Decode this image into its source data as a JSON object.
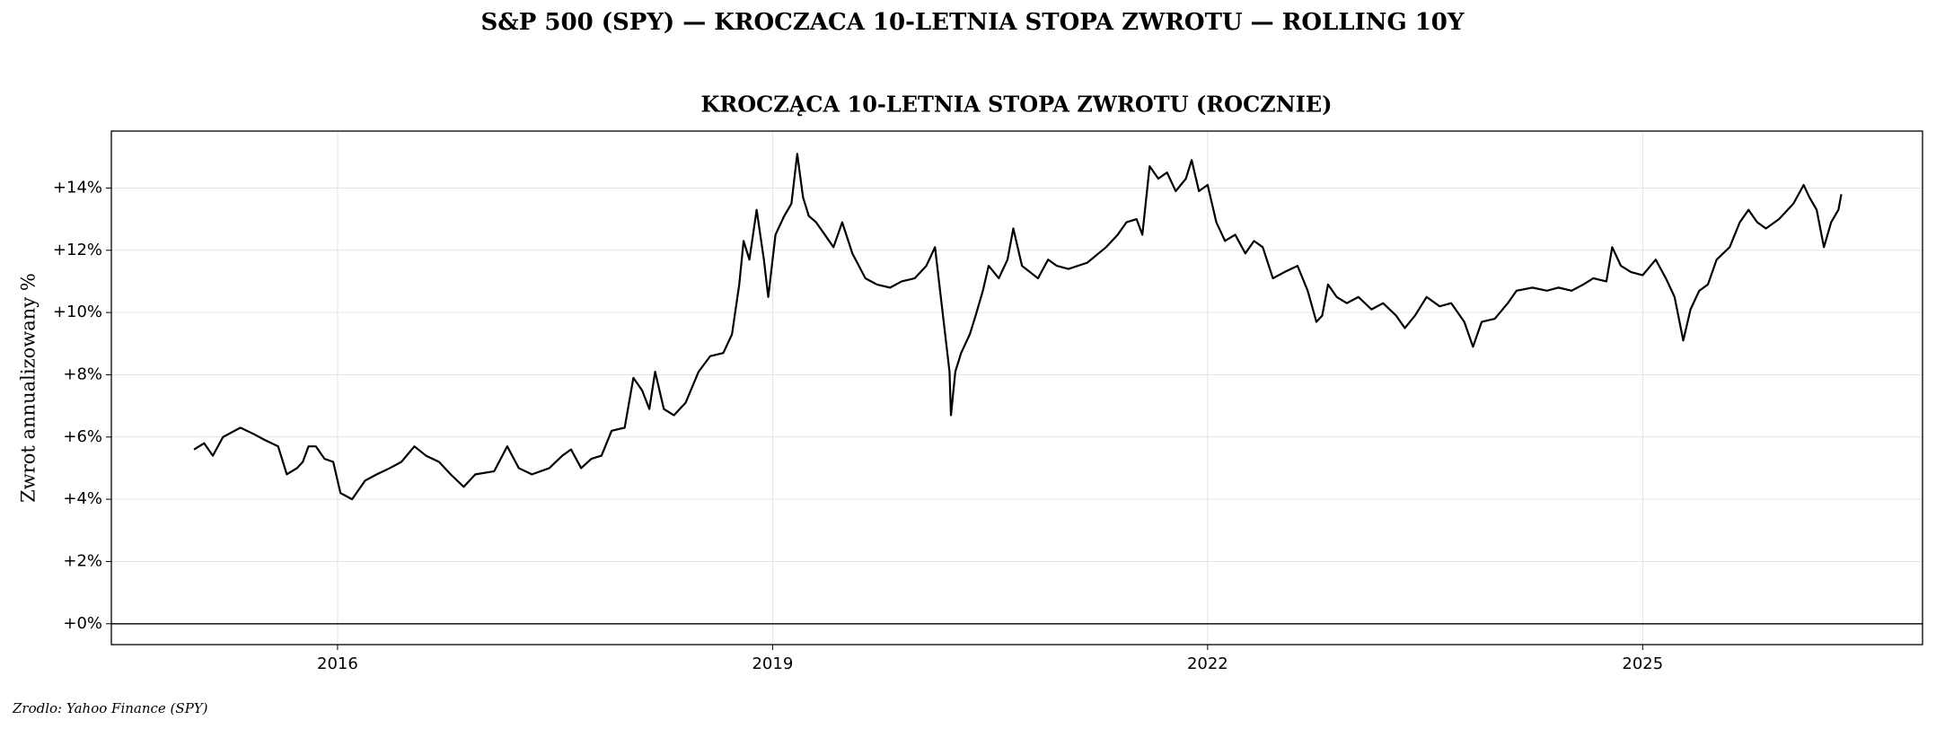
{
  "chart_data": {
    "type": "line",
    "suptitle": "S&P 500 (SPY) — KROCZACA 10-LETNIA STOPA ZWROTU — ROLLING 10Y",
    "title": "KROCZĄCA 10-LETNIA STOPA ZWROTU (ROCZNIE)",
    "ylabel": "Zwrot annualizowany %",
    "source": "Zrodlo: Yahoo Finance (SPY)",
    "color": "#000000",
    "grid": true,
    "hline": 0,
    "xlim": [
      2014.44,
      2026.93
    ],
    "xticks": [
      2016,
      2019,
      2022,
      2025
    ],
    "ylim": [
      -0.67,
      15.83
    ],
    "yticks": [
      {
        "value": 0,
        "label": "+0%"
      },
      {
        "value": 2,
        "label": "+2%"
      },
      {
        "value": 4,
        "label": "+4%"
      },
      {
        "value": 6,
        "label": "+6%"
      },
      {
        "value": 8,
        "label": "+8%"
      },
      {
        "value": 10,
        "label": "+10%"
      },
      {
        "value": 12,
        "label": "+12%"
      },
      {
        "value": 14,
        "label": "+14%"
      }
    ],
    "x": [
      2015.01,
      2015.08,
      2015.14,
      2015.21,
      2015.29,
      2015.33,
      2015.42,
      2015.5,
      2015.59,
      2015.65,
      2015.72,
      2015.76,
      2015.8,
      2015.85,
      2015.91,
      2015.97,
      2016.02,
      2016.1,
      2016.19,
      2016.27,
      2016.36,
      2016.44,
      2016.53,
      2016.61,
      2016.7,
      2016.78,
      2016.87,
      2016.95,
      2017.08,
      2017.17,
      2017.25,
      2017.34,
      2017.46,
      2017.55,
      2017.61,
      2017.68,
      2017.75,
      2017.82,
      2017.89,
      2017.98,
      2018.04,
      2018.1,
      2018.15,
      2018.19,
      2018.25,
      2018.32,
      2018.4,
      2018.49,
      2018.57,
      2018.66,
      2018.72,
      2018.77,
      2018.8,
      2018.84,
      2018.89,
      2018.94,
      2018.97,
      2019.02,
      2019.08,
      2019.13,
      2019.17,
      2019.21,
      2019.25,
      2019.3,
      2019.36,
      2019.42,
      2019.48,
      2019.55,
      2019.64,
      2019.72,
      2019.81,
      2019.89,
      2019.98,
      2020.06,
      2020.12,
      2020.16,
      2020.19,
      2020.22,
      2020.23,
      2020.26,
      2020.3,
      2020.36,
      2020.4,
      2020.45,
      2020.49,
      2020.56,
      2020.62,
      2020.66,
      2020.72,
      2020.83,
      2020.9,
      2020.96,
      2021.04,
      2021.17,
      2021.3,
      2021.38,
      2021.44,
      2021.51,
      2021.55,
      2021.6,
      2021.66,
      2021.72,
      2021.78,
      2021.85,
      2021.89,
      2021.94,
      2022.0,
      2022.06,
      2022.12,
      2022.19,
      2022.26,
      2022.32,
      2022.38,
      2022.45,
      2022.53,
      2022.62,
      2022.69,
      2022.75,
      2022.79,
      2022.83,
      2022.89,
      2022.96,
      2023.04,
      2023.13,
      2023.21,
      2023.3,
      2023.36,
      2023.43,
      2023.51,
      2023.6,
      2023.68,
      2023.77,
      2023.83,
      2023.89,
      2023.98,
      2024.07,
      2024.13,
      2024.24,
      2024.34,
      2024.42,
      2024.51,
      2024.59,
      2024.66,
      2024.75,
      2024.79,
      2024.85,
      2024.92,
      2025.0,
      2025.09,
      2025.16,
      2025.22,
      2025.28,
      2025.33,
      2025.39,
      2025.45,
      2025.51,
      2025.6,
      2025.67,
      2025.73,
      2025.79,
      2025.85,
      2025.94,
      2026.04,
      2026.11,
      2026.15,
      2026.2,
      2026.25,
      2026.3,
      2026.35,
      2026.37
    ],
    "values": [
      5.6,
      5.8,
      5.4,
      6.0,
      6.2,
      6.3,
      6.1,
      5.9,
      5.7,
      4.8,
      5.0,
      5.2,
      5.7,
      5.7,
      5.3,
      5.2,
      4.2,
      4.0,
      4.6,
      4.8,
      5.0,
      5.2,
      5.7,
      5.4,
      5.2,
      4.8,
      4.4,
      4.8,
      4.9,
      5.7,
      5.0,
      4.8,
      5.0,
      5.4,
      5.6,
      5.0,
      5.3,
      5.4,
      6.2,
      6.3,
      7.9,
      7.5,
      6.9,
      8.1,
      6.9,
      6.7,
      7.1,
      8.1,
      8.6,
      8.7,
      9.3,
      10.9,
      12.3,
      11.7,
      13.3,
      11.7,
      10.5,
      12.5,
      13.1,
      13.5,
      15.1,
      13.7,
      13.1,
      12.9,
      12.5,
      12.1,
      12.9,
      11.9,
      11.1,
      10.9,
      10.8,
      11.0,
      11.1,
      11.5,
      12.1,
      10.5,
      9.3,
      8.1,
      6.7,
      8.1,
      8.7,
      9.3,
      9.9,
      10.7,
      11.5,
      11.1,
      11.7,
      12.7,
      11.5,
      11.1,
      11.7,
      11.5,
      11.4,
      11.6,
      12.1,
      12.5,
      12.9,
      13.0,
      12.5,
      14.7,
      14.3,
      14.5,
      13.9,
      14.3,
      14.9,
      13.9,
      14.1,
      12.9,
      12.3,
      12.5,
      11.9,
      12.3,
      12.1,
      11.1,
      11.3,
      11.5,
      10.7,
      9.7,
      9.9,
      10.9,
      10.5,
      10.3,
      10.5,
      10.1,
      10.3,
      9.9,
      9.5,
      9.9,
      10.5,
      10.2,
      10.3,
      9.7,
      8.9,
      9.7,
      9.8,
      10.3,
      10.7,
      10.8,
      10.7,
      10.8,
      10.7,
      10.9,
      11.1,
      11.0,
      12.1,
      11.5,
      11.3,
      11.2,
      11.7,
      11.1,
      10.5,
      9.1,
      10.1,
      10.7,
      10.9,
      11.7,
      12.1,
      12.9,
      13.3,
      12.9,
      12.7,
      13.0,
      13.5,
      14.1,
      13.7,
      13.3,
      12.1,
      12.9,
      13.3,
      13.8
    ]
  }
}
